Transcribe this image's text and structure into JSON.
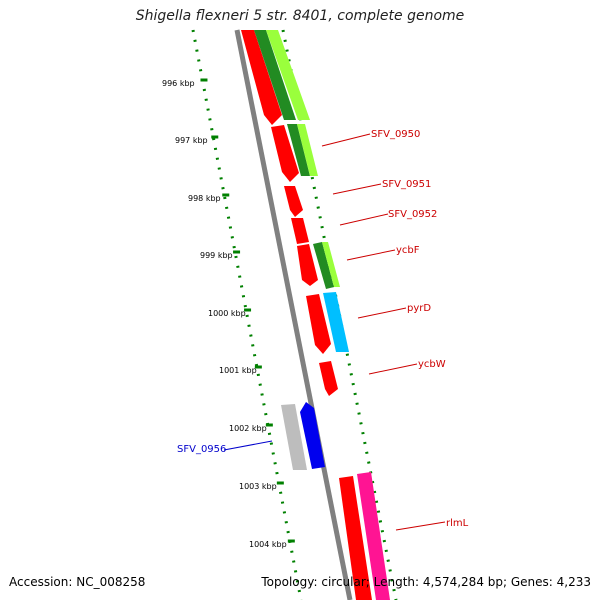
{
  "title": "Shigella flexneri 5 str. 8401, complete genome",
  "accession": "Accession: NC_008258",
  "summary": "Topology: circular; Length: 4,574,284 bp; Genes: 4,233",
  "ruler": [
    "996 kbp",
    "997 kbp",
    "998 kbp",
    "999 kbp",
    "1000 kbp",
    "1001 kbp",
    "1002 kbp",
    "1003 kbp",
    "1004 kbp"
  ],
  "gene_labels": {
    "SFV_0950": "SFV_0950",
    "SFV_0951": "SFV_0951",
    "SFV_0952": "SFV_0952",
    "ycbF": "ycbF",
    "pyrD": "pyrD",
    "ycbW": "ycbW",
    "SFV_0956": "SFV_0956",
    "rlmL": "rlmL"
  },
  "colors": {
    "forward_cds": "#ff0000",
    "forward_gene_highlight": "#7fff00",
    "highlight_green": "#228b22",
    "reverse_cds": "#0000ff",
    "cyan": "#00bfff",
    "magenta": "#ff1493",
    "grey_backbone": "#808080",
    "ruler_green": "#008000",
    "label_red": "#cc0000",
    "label_blue": "#0000cc"
  }
}
